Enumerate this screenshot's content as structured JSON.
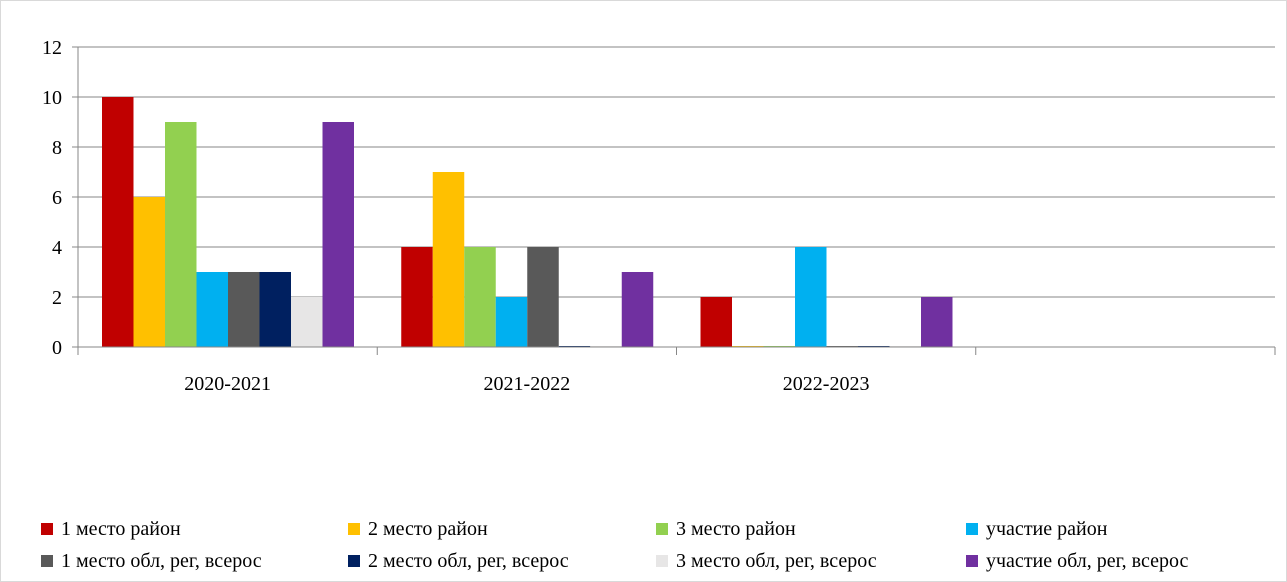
{
  "chart_data": {
    "type": "bar",
    "title": "",
    "xlabel": "",
    "ylabel": "",
    "ylim": [
      0,
      12
    ],
    "yticks": [
      "0",
      "2",
      "4",
      "6",
      "8",
      "10",
      "12"
    ],
    "grid": "horizontal",
    "legend_position": "bottom",
    "categories": [
      "2020-2021",
      "2021-2022",
      "2022-2023",
      ""
    ],
    "series": [
      {
        "name": "1 место район",
        "color": "#c00000",
        "values": [
          10,
          4,
          2,
          null
        ]
      },
      {
        "name": "2 место район",
        "color": "#ffc000",
        "values": [
          6,
          7,
          0,
          null
        ]
      },
      {
        "name": "3 место район",
        "color": "#92d050",
        "values": [
          9,
          4,
          0,
          null
        ]
      },
      {
        "name": "участие район",
        "color": "#00b0f0",
        "values": [
          3,
          2,
          4,
          null
        ]
      },
      {
        "name": "1 место обл, рег, всерос",
        "color": "#595959",
        "values": [
          3,
          4,
          0,
          null
        ]
      },
      {
        "name": "2 место обл, рег, всерос",
        "color": "#002060",
        "values": [
          3,
          0,
          0,
          null
        ]
      },
      {
        "name": "3 место обл, рег, всерос",
        "color": "#e7e6e6",
        "values": [
          2,
          0,
          0,
          null
        ]
      },
      {
        "name": "участие обл, рег, всерос",
        "color": "#7030a0",
        "values": [
          9,
          3,
          2,
          null
        ]
      }
    ]
  }
}
